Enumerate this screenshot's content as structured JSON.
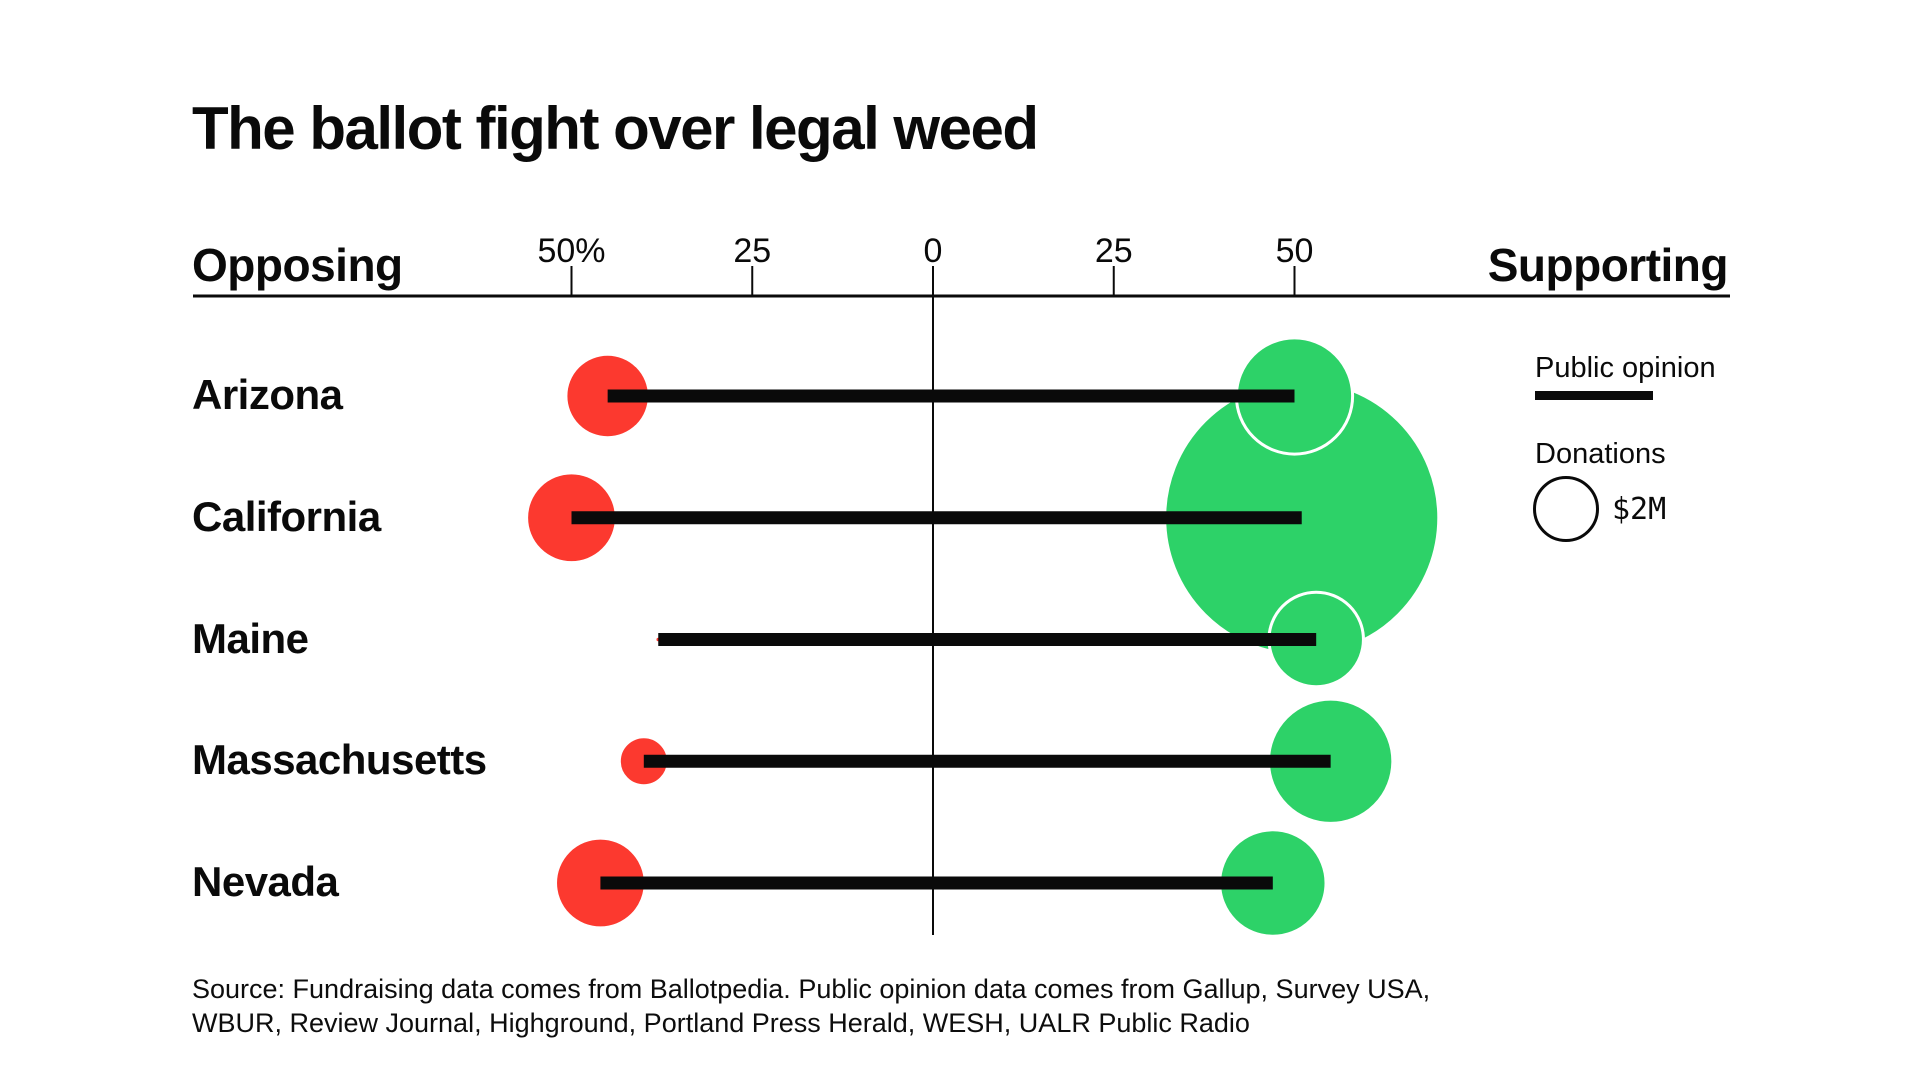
{
  "title": "The ballot fight over legal weed",
  "axis": {
    "left_label": "Opposing",
    "right_label": "Supporting"
  },
  "legend": {
    "line_label": "Public opinion",
    "bubble_label": "Donations",
    "bubble_value": "$2M"
  },
  "source": {
    "line1": "Source: Fundraising data comes from Ballotpedia. Public opinion data comes from Gallup, Survey USA,",
    "line2": "WBUR, Review Journal, Highground, Portland Press Herald, WESH, UALR Public Radio"
  },
  "colors": {
    "oppose": "#fc392f",
    "support": "#2dd268",
    "ink": "#0a0a0a",
    "background": "#ffffff"
  },
  "chart_data": {
    "type": "diverging bubble-line (lollipop) chart",
    "title": "The ballot fight over legal weed",
    "categories": [
      "Arizona",
      "California",
      "Maine",
      "Massachusetts",
      "Nevada"
    ],
    "series": [
      {
        "name": "Public opinion opposing (%)",
        "values": [
          45,
          50,
          38,
          40,
          46
        ]
      },
      {
        "name": "Public opinion supporting (%)",
        "values": [
          50,
          51,
          53,
          55,
          47
        ]
      },
      {
        "name": "Donations opposing ($M, est. from bubble area)",
        "values": [
          3.2,
          3.7,
          0.02,
          1.1,
          3.7
        ]
      },
      {
        "name": "Donations supporting ($M, est. from bubble area)",
        "values": [
          6.2,
          34.5,
          4.1,
          7.1,
          5.2
        ]
      }
    ],
    "x_axis": {
      "tick_values": [
        -50,
        -25,
        0,
        25,
        50
      ],
      "tick_labels": [
        "50%",
        "25",
        "0",
        "25",
        "50"
      ],
      "left_side_label": "Opposing",
      "right_side_label": "Supporting"
    },
    "legend_reference": {
      "label": "Donations",
      "value_label": "$2M",
      "value_millions": 2
    },
    "notes": "Black line spans opposing-% to supporting-% of public opinion; bubble area encodes donation totals (red = opposing, green = supporting)."
  }
}
